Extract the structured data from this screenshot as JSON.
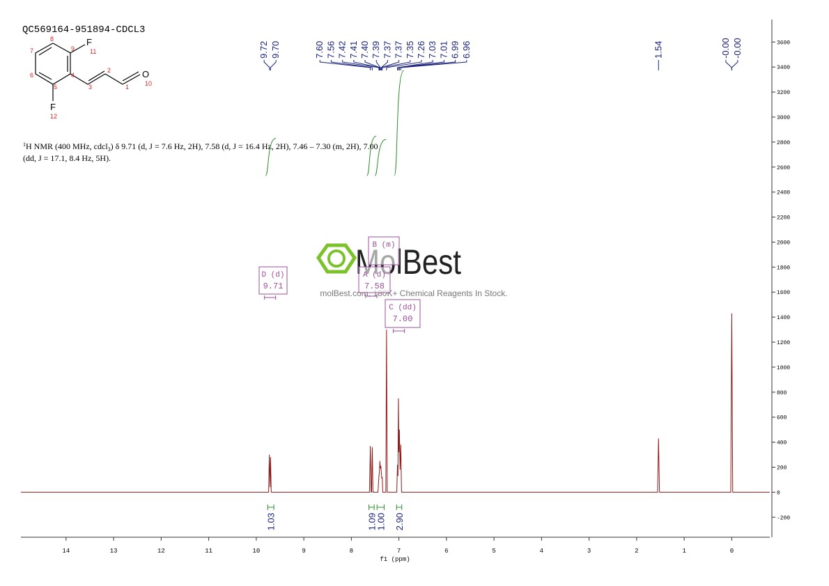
{
  "chart_data": {
    "type": "line",
    "title": "QC569164-951894-CDCL3",
    "xlabel": "f1 (ppm)",
    "color": "#8b1a1a",
    "x": [
      14.95,
      9.74,
      9.725,
      9.71,
      9.7,
      9.685,
      7.62,
      7.6,
      7.585,
      7.575,
      7.56,
      7.545,
      7.44,
      7.42,
      7.41,
      7.4,
      7.39,
      7.38,
      7.37,
      7.36,
      7.35,
      7.34,
      7.275,
      7.26,
      7.245,
      7.045,
      7.03,
      7.02,
      7.01,
      7.0,
      6.99,
      6.975,
      6.96,
      6.945,
      1.56,
      1.54,
      1.52,
      0.02,
      0,
      -0.02,
      -0.8
    ],
    "values": [
      0,
      0,
      300,
      40,
      280,
      0,
      0,
      370,
      0,
      0,
      360,
      0,
      0,
      130,
      160,
      250,
      190,
      210,
      160,
      110,
      120,
      0,
      0,
      1300,
      0,
      0,
      220,
      130,
      750,
      320,
      500,
      180,
      380,
      0,
      0,
      430,
      0,
      0,
      1430,
      0,
      0
    ],
    "xlim": [
      14.95,
      -0.8
    ],
    "ylim": [
      -360,
      3780
    ],
    "xticks": [
      14,
      13,
      12,
      11,
      10,
      9,
      8,
      7,
      6,
      5,
      4,
      3,
      2,
      1,
      0
    ],
    "yticks": [
      -200,
      0,
      200,
      400,
      600,
      800,
      1000,
      1200,
      1400,
      1600,
      1800,
      2000,
      2200,
      2400,
      2600,
      2800,
      3000,
      3200,
      3400,
      3600
    ],
    "peaks": [
      9.72,
      {
        "value": 9.7,
        "label": "9.70"
      },
      {
        "value": 7.6,
        "label": "7.60"
      },
      7.56,
      7.42,
      7.41,
      {
        "value": 7.4,
        "label": "7.40"
      },
      7.39,
      7.37,
      7.37,
      7.35,
      7.26,
      7.03,
      7.01,
      6.99,
      6.96,
      1.54,
      {
        "value": 0,
        "label": "-0.00"
      },
      {
        "value": 0,
        "label": "-0.00"
      }
    ],
    "peak_color": "#1a237e",
    "integrals": {
      "color": "#2e8b2e",
      "ranges": [
        [
          9.76,
          9.63
        ],
        [
          7.63,
          7.52
        ],
        [
          7.46,
          7.31
        ],
        [
          7.05,
          6.94
        ]
      ],
      "values": [
        1.03,
        1.09,
        {
          "value": 1,
          "label": "1.00"
        },
        {
          "value": 2.9,
          "label": "2.90"
        }
      ]
    },
    "multiplets": [
      {
        "label": "D (d)",
        "value": 9.71
      },
      {
        "label": "A (d)",
        "value": 7.58
      },
      {
        "label": "B (m)"
      },
      {
        "label": "C (dd)",
        "value": {
          "value": 7,
          "label": "7.00"
        }
      }
    ],
    "multiplet_color": "#9b4f9b"
  },
  "description": {
    "line1": [
      "1",
      "H NMR (400 MHz, cdcl",
      "3",
      ") δ 9.71 (d, J = 7.6 Hz, 2H), 7.58 (d, J = 16.4 Hz, 2H), 7.46 – 7.30 (m, 2H), 7.00"
    ],
    "line2": "(dd, J = 17.1, 8.4 Hz, 5H)."
  },
  "structure": {
    "atoms": [
      "F",
      "11",
      "8",
      "9",
      "7",
      "6",
      "4",
      "5",
      "3",
      "2",
      "1",
      "O",
      "10",
      "F",
      "12"
    ]
  },
  "watermark": {
    "brand": "MolBest",
    "slogan": "molBest.com, 180K+ Chemical Reagents In Stock."
  }
}
